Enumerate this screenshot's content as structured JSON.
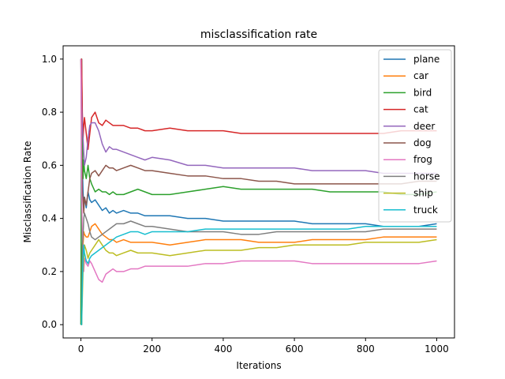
{
  "chart_data": {
    "type": "line",
    "title": "misclassification rate",
    "xlabel": "Iterations",
    "ylabel": "Misclassification Rate",
    "xlim": [
      -50,
      1050
    ],
    "ylim": [
      -0.05,
      1.05
    ],
    "xticks": [
      0,
      200,
      400,
      600,
      800,
      1000
    ],
    "yticks": [
      0.0,
      0.2,
      0.4,
      0.6,
      0.8,
      1.0
    ],
    "xtick_labels": [
      "0",
      "200",
      "400",
      "600",
      "800",
      "1000"
    ],
    "ytick_labels": [
      "0.0",
      "0.2",
      "0.4",
      "0.6",
      "0.8",
      "1.0"
    ],
    "grid": false,
    "legend_position": "upper-right",
    "x": [
      0,
      2,
      4,
      6,
      8,
      10,
      15,
      20,
      25,
      30,
      40,
      50,
      60,
      70,
      80,
      90,
      100,
      120,
      140,
      160,
      180,
      200,
      250,
      300,
      350,
      400,
      450,
      500,
      550,
      600,
      650,
      700,
      750,
      800,
      850,
      900,
      950,
      1000
    ],
    "series": [
      {
        "name": "plane",
        "color": "#1f77b4",
        "values": [
          0.0,
          1.0,
          0.6,
          0.5,
          0.45,
          0.48,
          0.44,
          0.5,
          0.47,
          0.46,
          0.47,
          0.45,
          0.43,
          0.44,
          0.42,
          0.43,
          0.42,
          0.43,
          0.42,
          0.42,
          0.41,
          0.41,
          0.41,
          0.4,
          0.4,
          0.39,
          0.39,
          0.39,
          0.39,
          0.39,
          0.38,
          0.38,
          0.38,
          0.38,
          0.37,
          0.37,
          0.37,
          0.38
        ]
      },
      {
        "name": "car",
        "color": "#ff7f0e",
        "values": [
          0.0,
          0.0,
          0.2,
          0.3,
          0.35,
          0.34,
          0.33,
          0.33,
          0.35,
          0.37,
          0.38,
          0.36,
          0.34,
          0.33,
          0.32,
          0.32,
          0.31,
          0.32,
          0.31,
          0.31,
          0.31,
          0.31,
          0.3,
          0.31,
          0.32,
          0.32,
          0.32,
          0.31,
          0.31,
          0.31,
          0.32,
          0.32,
          0.32,
          0.32,
          0.33,
          0.33,
          0.33,
          0.33
        ]
      },
      {
        "name": "bird",
        "color": "#2ca02c",
        "values": [
          0.0,
          1.0,
          0.7,
          0.55,
          0.62,
          0.58,
          0.55,
          0.6,
          0.55,
          0.53,
          0.5,
          0.51,
          0.5,
          0.5,
          0.49,
          0.5,
          0.49,
          0.49,
          0.5,
          0.51,
          0.5,
          0.49,
          0.49,
          0.5,
          0.51,
          0.52,
          0.51,
          0.51,
          0.51,
          0.51,
          0.51,
          0.5,
          0.5,
          0.5,
          0.5,
          0.49,
          0.49,
          0.5
        ]
      },
      {
        "name": "cat",
        "color": "#d62728",
        "values": [
          1.0,
          1.0,
          0.8,
          0.7,
          0.75,
          0.78,
          0.72,
          0.66,
          0.72,
          0.78,
          0.8,
          0.76,
          0.75,
          0.77,
          0.76,
          0.75,
          0.75,
          0.75,
          0.74,
          0.74,
          0.73,
          0.73,
          0.74,
          0.73,
          0.73,
          0.73,
          0.72,
          0.72,
          0.72,
          0.72,
          0.72,
          0.72,
          0.72,
          0.72,
          0.72,
          0.73,
          0.73,
          0.73
        ]
      },
      {
        "name": "deer",
        "color": "#9467bd",
        "values": [
          1.0,
          0.83,
          0.75,
          0.7,
          0.65,
          0.6,
          0.63,
          0.7,
          0.75,
          0.76,
          0.76,
          0.73,
          0.68,
          0.65,
          0.67,
          0.66,
          0.66,
          0.65,
          0.64,
          0.63,
          0.62,
          0.63,
          0.62,
          0.6,
          0.6,
          0.59,
          0.59,
          0.59,
          0.59,
          0.59,
          0.58,
          0.58,
          0.58,
          0.58,
          0.57,
          0.57,
          0.57,
          0.57
        ]
      },
      {
        "name": "dog",
        "color": "#8c564b",
        "values": [
          1.0,
          0.67,
          0.5,
          0.47,
          0.42,
          0.48,
          0.45,
          0.5,
          0.55,
          0.57,
          0.58,
          0.56,
          0.58,
          0.6,
          0.59,
          0.59,
          0.58,
          0.59,
          0.6,
          0.59,
          0.58,
          0.58,
          0.57,
          0.56,
          0.56,
          0.55,
          0.55,
          0.54,
          0.54,
          0.53,
          0.53,
          0.53,
          0.53,
          0.53,
          0.53,
          0.53,
          0.54,
          0.54
        ]
      },
      {
        "name": "frog",
        "color": "#e377c2",
        "values": [
          1.0,
          0.5,
          0.33,
          0.25,
          0.2,
          0.25,
          0.23,
          0.22,
          0.24,
          0.23,
          0.2,
          0.17,
          0.16,
          0.19,
          0.2,
          0.21,
          0.2,
          0.2,
          0.21,
          0.21,
          0.22,
          0.22,
          0.22,
          0.22,
          0.23,
          0.23,
          0.24,
          0.24,
          0.24,
          0.24,
          0.23,
          0.23,
          0.23,
          0.23,
          0.23,
          0.23,
          0.23,
          0.24
        ]
      },
      {
        "name": "horse",
        "color": "#7f7f7f",
        "values": [
          0.0,
          0.0,
          0.3,
          0.33,
          0.4,
          0.42,
          0.4,
          0.38,
          0.35,
          0.33,
          0.32,
          0.33,
          0.34,
          0.35,
          0.36,
          0.37,
          0.38,
          0.38,
          0.39,
          0.38,
          0.37,
          0.37,
          0.36,
          0.35,
          0.35,
          0.35,
          0.34,
          0.34,
          0.35,
          0.35,
          0.35,
          0.35,
          0.35,
          0.35,
          0.36,
          0.36,
          0.36,
          0.36
        ]
      },
      {
        "name": "ship",
        "color": "#bcbd22",
        "values": [
          0.0,
          0.0,
          0.1,
          0.2,
          0.25,
          0.3,
          0.28,
          0.25,
          0.27,
          0.28,
          0.3,
          0.32,
          0.3,
          0.28,
          0.27,
          0.27,
          0.26,
          0.27,
          0.28,
          0.27,
          0.27,
          0.27,
          0.26,
          0.27,
          0.28,
          0.28,
          0.28,
          0.29,
          0.29,
          0.3,
          0.3,
          0.3,
          0.3,
          0.31,
          0.31,
          0.31,
          0.31,
          0.32
        ]
      },
      {
        "name": "truck",
        "color": "#17becf",
        "values": [
          0.0,
          0.0,
          0.15,
          0.25,
          0.3,
          0.27,
          0.24,
          0.23,
          0.25,
          0.26,
          0.27,
          0.28,
          0.29,
          0.3,
          0.31,
          0.32,
          0.33,
          0.34,
          0.35,
          0.35,
          0.34,
          0.35,
          0.35,
          0.35,
          0.36,
          0.36,
          0.36,
          0.36,
          0.36,
          0.36,
          0.36,
          0.36,
          0.36,
          0.37,
          0.37,
          0.37,
          0.37,
          0.37
        ]
      }
    ]
  }
}
